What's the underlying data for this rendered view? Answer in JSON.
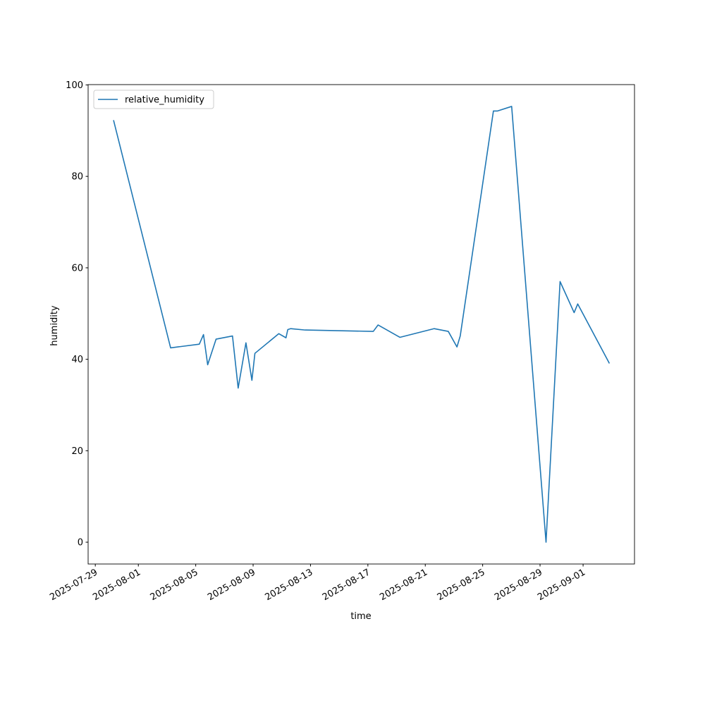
{
  "chart_data": {
    "type": "line",
    "xlabel": "time",
    "ylabel": "humidity",
    "x": [
      "2025-07-30T06:30",
      "2025-08-03T06:00",
      "2025-08-05T06:00",
      "2025-08-05T13:00",
      "2025-08-05T20:00",
      "2025-08-06T10:00",
      "2025-08-07T13:30",
      "2025-08-07T23:00",
      "2025-08-08T12:00",
      "2025-08-08T22:00",
      "2025-08-09T03:00",
      "2025-08-10T19:00",
      "2025-08-11T07:00",
      "2025-08-11T10:00",
      "2025-08-11T15:00",
      "2025-08-12T15:00",
      "2025-08-17T09:00",
      "2025-08-17T17:00",
      "2025-08-19T05:30",
      "2025-08-21T15:00",
      "2025-08-22T14:30",
      "2025-08-23T05:00",
      "2025-08-23T10:30",
      "2025-08-25T18:00",
      "2025-08-26T01:00",
      "2025-08-27T00:30",
      "2025-08-29T10:00",
      "2025-08-30T09:30",
      "2025-08-31T09:00",
      "2025-08-31T15:00",
      "2025-09-02T20:00"
    ],
    "series": [
      {
        "name": "relative_humidity",
        "color": "#1f77b4",
        "values": [
          92.3,
          42.5,
          43.3,
          45.4,
          38.8,
          44.4,
          45.1,
          33.7,
          43.6,
          35.4,
          41.3,
          45.6,
          44.7,
          46.5,
          46.7,
          46.4,
          46.1,
          47.5,
          44.8,
          46.7,
          46.1,
          42.7,
          45.1,
          94.3,
          94.3,
          95.3,
          0,
          57.0,
          50.2,
          52.1,
          39.1
        ]
      }
    ],
    "xlim": [
      "2025-07-28T12:00",
      "2025-09-04T14:00"
    ],
    "xticks": [
      "2025-07-29",
      "2025-08-01",
      "2025-08-05",
      "2025-08-09",
      "2025-08-13",
      "2025-08-17",
      "2025-08-21",
      "2025-08-25",
      "2025-08-29",
      "2025-09-01"
    ],
    "ylim": [
      -4.77,
      100.07
    ],
    "yticks": [
      0,
      20,
      40,
      60,
      80,
      100
    ],
    "legend": "upper left",
    "grid": false
  }
}
